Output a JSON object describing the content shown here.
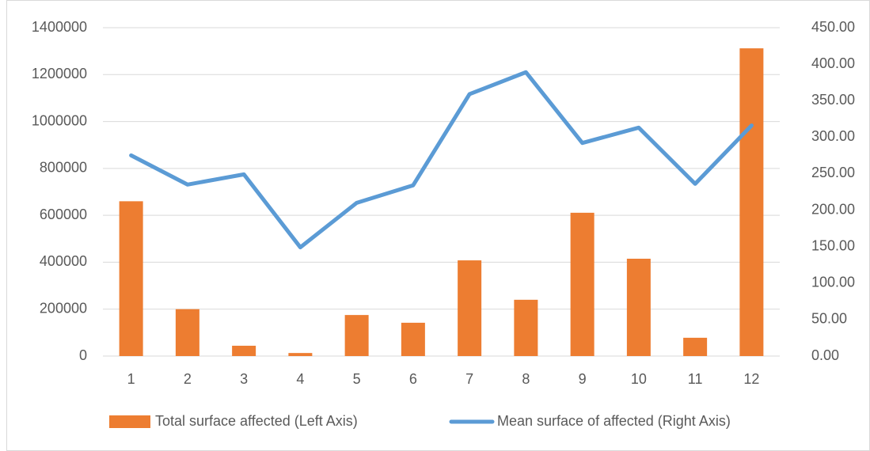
{
  "chart_data": {
    "type": "bar_line",
    "categories": [
      "1",
      "2",
      "3",
      "4",
      "5",
      "6",
      "7",
      "8",
      "9",
      "10",
      "11",
      "12"
    ],
    "series": [
      {
        "name": "Total surface affected (Left Axis)",
        "color": "#ed7d31",
        "type": "bar",
        "values": [
          660000,
          200000,
          44000,
          13000,
          175000,
          142000,
          408000,
          240000,
          611000,
          415000,
          78000,
          1312000
        ]
      },
      {
        "name": "Mean surface of affected (Right Axis)",
        "color": "#5b9bd5",
        "type": "line",
        "axis": "y2",
        "values": [
          275,
          235,
          249,
          149,
          210,
          234,
          359,
          389,
          292,
          313,
          236,
          316
        ]
      }
    ],
    "ylim": [
      0,
      1400000
    ],
    "yticks": [
      0,
      200000,
      400000,
      600000,
      800000,
      1000000,
      1200000,
      1400000
    ],
    "y2lim": [
      0,
      450
    ],
    "y2ticks": [
      {
        "value": 0,
        "label": "0.00"
      },
      {
        "value": 50,
        "label": "50.00"
      },
      {
        "value": 100,
        "label": "100.00"
      },
      {
        "value": 150,
        "label": "150.00"
      },
      {
        "value": 200,
        "label": "200.00"
      },
      {
        "value": 250,
        "label": "250.00"
      },
      {
        "value": 300,
        "label": "300.00"
      },
      {
        "value": 350,
        "label": "350.00"
      },
      {
        "value": 400,
        "label": "400.00"
      },
      {
        "value": 450,
        "label": "450.00"
      }
    ],
    "grid": true,
    "legend": "bottom"
  }
}
